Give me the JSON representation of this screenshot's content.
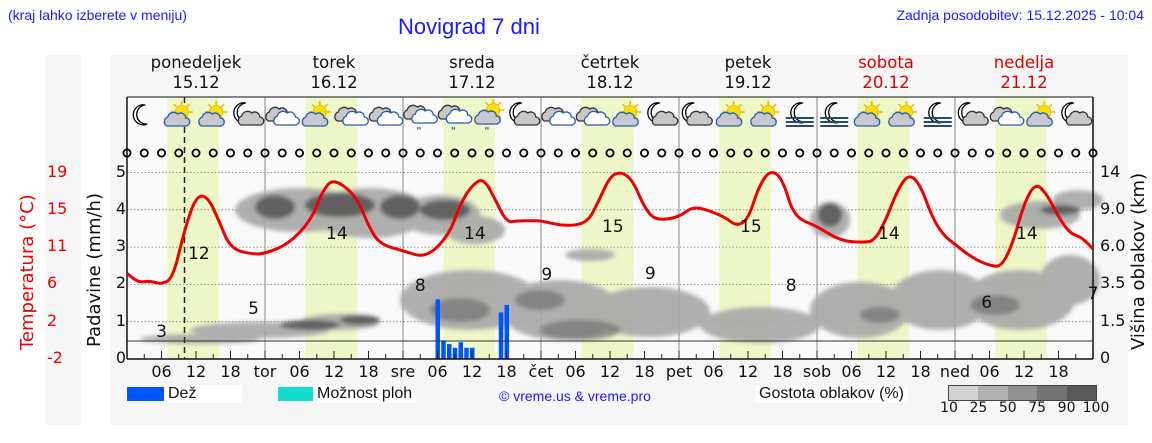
{
  "header": {
    "location_hint": "(kraj lahko izberete v meniju)",
    "title": "Novigrad 7 dni",
    "last_update": "Zadnja posodobitev: 15.12.2025 - 10:04"
  },
  "days": [
    {
      "name": "ponedeljek",
      "date": "15.12",
      "weekend": false
    },
    {
      "name": "torek",
      "date": "16.12",
      "weekend": false
    },
    {
      "name": "sreda",
      "date": "17.12",
      "weekend": false
    },
    {
      "name": "četrtek",
      "date": "18.12",
      "weekend": false
    },
    {
      "name": "petek",
      "date": "19.12",
      "weekend": false
    },
    {
      "name": "sobota",
      "date": "20.12",
      "weekend": true
    },
    {
      "name": "nedelja",
      "date": "21.12",
      "weekend": true
    }
  ],
  "weather_icons": [
    "moon-clear-icon",
    "sun-partly-cloudy-icon",
    "sun-partly-cloudy-icon",
    "moon-cloudy-icon",
    "cloudy-icon",
    "sun-partly-cloudy-icon",
    "cloudy-icon",
    "cloudy-icon",
    "cloudy-light-rain-icon",
    "cloudy-light-rain-icon",
    "sun-cloud-light-rain-icon",
    "moon-cloudy-icon",
    "cloudy-icon",
    "cloudy-icon",
    "sun-partly-cloudy-icon",
    "moon-cloudy-icon",
    "moon-cloudy-icon",
    "sun-partly-cloudy-icon",
    "sun-partly-cloudy-icon",
    "moon-fog-icon",
    "moon-fog-icon",
    "sun-partly-cloudy-icon",
    "sun-partly-cloudy-icon",
    "moon-fog-icon",
    "moon-cloudy-icon",
    "cloudy-icon",
    "sun-partly-cloudy-icon",
    "moon-cloudy-icon"
  ],
  "axes": {
    "left_label": "Padavine (mm/h)",
    "left_ticks": [
      "0",
      "1",
      "2",
      "3",
      "4",
      "5"
    ],
    "temp_label": "Temperatura (°C)",
    "temp_ticks": [
      "-2",
      "2",
      "6",
      "11",
      "15",
      "19"
    ],
    "right_label": "Višina oblakov (km)",
    "right_ticks": [
      "0",
      "1.5",
      "3.5",
      "6.0",
      "9.0",
      "14"
    ],
    "x_ticks": [
      "06",
      "12",
      "18",
      "tor",
      "06",
      "12",
      "18",
      "sre",
      "06",
      "12",
      "18",
      "čet",
      "06",
      "12",
      "18",
      "pet",
      "06",
      "12",
      "18",
      "sob",
      "06",
      "12",
      "18",
      "ned",
      "06",
      "12",
      "18"
    ]
  },
  "legend": {
    "rain_label": "Dež",
    "rain_color": "#0055ff",
    "showers_label": "Možnost ploh",
    "showers_color": "#11ddcc",
    "copyright": "© vreme.us & vreme.pro",
    "cloud_density_label": "Gostota oblakov (%)",
    "cloud_density_ticks": [
      "10",
      "25",
      "50",
      "75",
      "90",
      "100"
    ],
    "cloud_density_colors": [
      "#d3d3d3",
      "#b0b0b0",
      "#909090",
      "#737373",
      "#585858"
    ]
  },
  "chart_data": {
    "type": "line",
    "title": "Novigrad 7 dni",
    "xlabel": "",
    "ylabel": "Padavine (mm/h)",
    "ylim": [
      0,
      5.3
    ],
    "y2label": "Temperatura (°C)",
    "y2lim": [
      -2,
      21
    ],
    "y3label": "Višina oblakov (km)",
    "grid": true,
    "current_time_marker": "15.12 10:00",
    "series": [
      {
        "name": "Temperatura (°C)",
        "color": "#ee0000",
        "type": "line",
        "x_hours": [
          0,
          2,
          4,
          6,
          8,
          10,
          12,
          14,
          16,
          18,
          22,
          24,
          28,
          32,
          34,
          36,
          40,
          42,
          44,
          48,
          52,
          56,
          58,
          60,
          62,
          64,
          66,
          68,
          70,
          72,
          76,
          80,
          82,
          84,
          86,
          88,
          90,
          92,
          96,
          98,
          100,
          104,
          106,
          108,
          110,
          112,
          114,
          116,
          120,
          124,
          128,
          130,
          132,
          134,
          136,
          138,
          140,
          142,
          144,
          146,
          148,
          150,
          152,
          154,
          156,
          158,
          160,
          162,
          164,
          166,
          168
        ],
        "values": [
          3.8,
          2.8,
          3.0,
          2.6,
          3.3,
          8.6,
          12.3,
          12.3,
          9.6,
          6.5,
          5.9,
          6.0,
          7.0,
          9.6,
          12.9,
          14.3,
          12.2,
          9.0,
          7.0,
          6.3,
          5.5,
          8.0,
          11.5,
          13.5,
          14.3,
          12.0,
          9.4,
          9.6,
          9.6,
          9.6,
          9.0,
          9.3,
          11.7,
          14.5,
          15.0,
          14.0,
          11.0,
          9.6,
          10.0,
          11.0,
          11.0,
          10.0,
          9.0,
          9.7,
          13.6,
          15.2,
          14.2,
          10.0,
          9.0,
          7.4,
          7.2,
          7.4,
          9.7,
          13.0,
          14.8,
          13.5,
          10.0,
          8.0,
          7.0,
          6.0,
          5.2,
          4.7,
          4.5,
          7.0,
          11.5,
          13.8,
          12.5,
          10.0,
          8.2,
          7.8,
          6.5
        ],
        "labels": [
          {
            "x_hour": 6,
            "text": "3"
          },
          {
            "x_hour": 12.5,
            "text": "12"
          },
          {
            "x_hour": 22,
            "text": "5"
          },
          {
            "x_hour": 36.5,
            "text": "14"
          },
          {
            "x_hour": 51,
            "text": "8"
          },
          {
            "x_hour": 60.5,
            "text": "14"
          },
          {
            "x_hour": 73,
            "text": "9"
          },
          {
            "x_hour": 84.5,
            "text": "15"
          },
          {
            "x_hour": 91,
            "text": "9"
          },
          {
            "x_hour": 108.5,
            "text": "15"
          },
          {
            "x_hour": 115.5,
            "text": "8"
          },
          {
            "x_hour": 132.5,
            "text": "14"
          },
          {
            "x_hour": 149.5,
            "text": "6"
          },
          {
            "x_hour": 156.5,
            "text": "14"
          },
          {
            "x_hour": 168,
            "text": "7"
          }
        ]
      },
      {
        "name": "Dež (mm/h)",
        "color": "#0055ff",
        "type": "bar",
        "x_hours": [
          54,
          55,
          56,
          57,
          58,
          59,
          60,
          65,
          66
        ],
        "values": [
          1.6,
          0.5,
          0.4,
          0.3,
          0.45,
          0.3,
          0.3,
          1.25,
          1.45
        ]
      },
      {
        "name": "Oblaki (density heat map)",
        "type": "heatmap",
        "description": "Grey cloud-density layers: high cloud ~3.3-4.5 mm-axis on 16.12-17.12; low/mid clouds 0.3-2.5 on 17.12-21.12"
      }
    ],
    "daylight_bands_hours": [
      [
        7,
        16
      ],
      [
        31,
        40
      ],
      [
        55,
        64
      ],
      [
        79,
        88
      ],
      [
        103,
        112
      ],
      [
        127,
        136
      ],
      [
        151,
        160
      ]
    ]
  }
}
